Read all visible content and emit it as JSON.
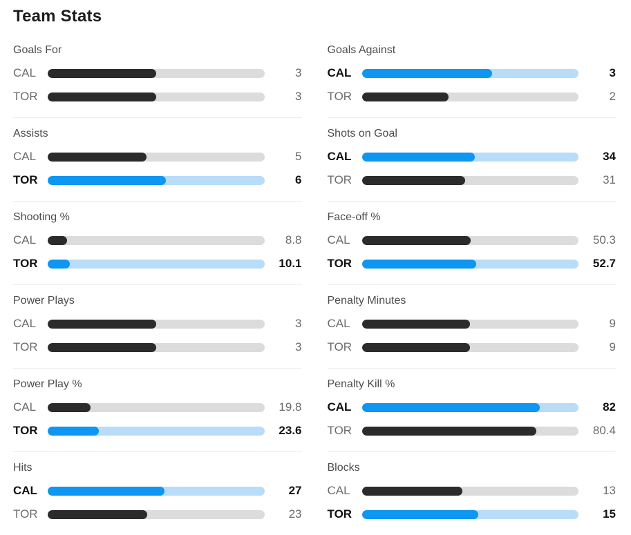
{
  "title": "Team Stats",
  "teams": [
    "CAL",
    "TOR"
  ],
  "colors": {
    "leader_bar": "#0d96f2",
    "leader_track": "#b9dcf9",
    "neutral_bar": "#2b2b2b",
    "neutral_track": "#dcdcdc",
    "highlight_text": "#111111",
    "muted_text": "#6b6b6b"
  },
  "columns": {
    "left": [
      {
        "label": "Goals For",
        "rows": [
          {
            "team": "CAL",
            "value": "3",
            "pct": 50,
            "highlight": false
          },
          {
            "team": "TOR",
            "value": "3",
            "pct": 50,
            "highlight": false
          }
        ]
      },
      {
        "label": "Assists",
        "rows": [
          {
            "team": "CAL",
            "value": "5",
            "pct": 45.5,
            "highlight": false
          },
          {
            "team": "TOR",
            "value": "6",
            "pct": 54.5,
            "highlight": true
          }
        ]
      },
      {
        "label": "Shooting %",
        "rows": [
          {
            "team": "CAL",
            "value": "8.8",
            "pct": 8.8,
            "highlight": false
          },
          {
            "team": "TOR",
            "value": "10.1",
            "pct": 10.1,
            "highlight": true
          }
        ]
      },
      {
        "label": "Power Plays",
        "rows": [
          {
            "team": "CAL",
            "value": "3",
            "pct": 50,
            "highlight": false
          },
          {
            "team": "TOR",
            "value": "3",
            "pct": 50,
            "highlight": false
          }
        ]
      },
      {
        "label": "Power Play %",
        "rows": [
          {
            "team": "CAL",
            "value": "19.8",
            "pct": 19.8,
            "highlight": false
          },
          {
            "team": "TOR",
            "value": "23.6",
            "pct": 23.6,
            "highlight": true
          }
        ]
      },
      {
        "label": "Hits",
        "rows": [
          {
            "team": "CAL",
            "value": "27",
            "pct": 54,
            "highlight": true
          },
          {
            "team": "TOR",
            "value": "23",
            "pct": 46,
            "highlight": false
          }
        ]
      }
    ],
    "right": [
      {
        "label": "Goals Against",
        "rows": [
          {
            "team": "CAL",
            "value": "3",
            "pct": 60,
            "highlight": true
          },
          {
            "team": "TOR",
            "value": "2",
            "pct": 40,
            "highlight": false
          }
        ]
      },
      {
        "label": "Shots on Goal",
        "rows": [
          {
            "team": "CAL",
            "value": "34",
            "pct": 52.3,
            "highlight": true
          },
          {
            "team": "TOR",
            "value": "31",
            "pct": 47.7,
            "highlight": false
          }
        ]
      },
      {
        "label": "Face-off %",
        "rows": [
          {
            "team": "CAL",
            "value": "50.3",
            "pct": 50.3,
            "highlight": false
          },
          {
            "team": "TOR",
            "value": "52.7",
            "pct": 52.7,
            "highlight": true
          }
        ]
      },
      {
        "label": "Penalty Minutes",
        "rows": [
          {
            "team": "CAL",
            "value": "9",
            "pct": 50,
            "highlight": false
          },
          {
            "team": "TOR",
            "value": "9",
            "pct": 50,
            "highlight": false
          }
        ]
      },
      {
        "label": "Penalty Kill %",
        "rows": [
          {
            "team": "CAL",
            "value": "82",
            "pct": 82,
            "highlight": true
          },
          {
            "team": "TOR",
            "value": "80.4",
            "pct": 80.4,
            "highlight": false
          }
        ]
      },
      {
        "label": "Blocks",
        "rows": [
          {
            "team": "CAL",
            "value": "13",
            "pct": 46.4,
            "highlight": false
          },
          {
            "team": "TOR",
            "value": "15",
            "pct": 53.6,
            "highlight": true
          }
        ]
      }
    ]
  }
}
